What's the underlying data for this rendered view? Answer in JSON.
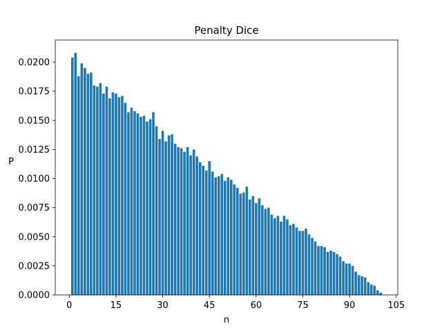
{
  "chart_data": {
    "type": "bar",
    "title": "Penalty Dice",
    "xlabel": "n",
    "ylabel": "P",
    "xlim": [
      -4.5,
      105.5
    ],
    "ylim": [
      0,
      0.0219
    ],
    "xticks": [
      0,
      15,
      30,
      45,
      60,
      75,
      90,
      105
    ],
    "yticks": [
      0.0,
      0.0025,
      0.005,
      0.0075,
      0.01,
      0.0125,
      0.015,
      0.0175,
      0.02
    ],
    "ytick_labels": [
      "0.0000",
      "0.0025",
      "0.0050",
      "0.0075",
      "0.0100",
      "0.0125",
      "0.0150",
      "0.0175",
      "0.0200"
    ],
    "grid": false,
    "bar_color": "#1f77b4",
    "x": [
      1,
      2,
      3,
      4,
      5,
      6,
      7,
      8,
      9,
      10,
      11,
      12,
      13,
      14,
      15,
      16,
      17,
      18,
      19,
      20,
      21,
      22,
      23,
      24,
      25,
      26,
      27,
      28,
      29,
      30,
      31,
      32,
      33,
      34,
      35,
      36,
      37,
      38,
      39,
      40,
      41,
      42,
      43,
      44,
      45,
      46,
      47,
      48,
      49,
      50,
      51,
      52,
      53,
      54,
      55,
      56,
      57,
      58,
      59,
      60,
      61,
      62,
      63,
      64,
      65,
      66,
      67,
      68,
      69,
      70,
      71,
      72,
      73,
      74,
      75,
      76,
      77,
      78,
      79,
      80,
      81,
      82,
      83,
      84,
      85,
      86,
      87,
      88,
      89,
      90,
      91,
      92,
      93,
      94,
      95,
      96,
      97,
      98,
      99,
      100
    ],
    "values": [
      0.0204,
      0.0208,
      0.0188,
      0.0199,
      0.0195,
      0.019,
      0.0191,
      0.018,
      0.0179,
      0.0182,
      0.0173,
      0.0179,
      0.0169,
      0.0174,
      0.0173,
      0.017,
      0.0171,
      0.0165,
      0.0157,
      0.0161,
      0.0158,
      0.0156,
      0.0153,
      0.0154,
      0.0149,
      0.0151,
      0.0157,
      0.0145,
      0.0134,
      0.0141,
      0.0132,
      0.0137,
      0.0138,
      0.013,
      0.0127,
      0.0126,
      0.0123,
      0.0127,
      0.012,
      0.0125,
      0.0119,
      0.0114,
      0.0111,
      0.0107,
      0.0115,
      0.0106,
      0.0101,
      0.0102,
      0.0104,
      0.0098,
      0.0101,
      0.0099,
      0.0095,
      0.0092,
      0.0087,
      0.0088,
      0.0093,
      0.0082,
      0.0085,
      0.0079,
      0.0083,
      0.0077,
      0.0074,
      0.0075,
      0.0069,
      0.0066,
      0.0068,
      0.0063,
      0.0068,
      0.0065,
      0.006,
      0.0061,
      0.0058,
      0.0055,
      0.0055,
      0.0057,
      0.0052,
      0.0049,
      0.0046,
      0.0042,
      0.0042,
      0.0041,
      0.0037,
      0.0038,
      0.0037,
      0.0035,
      0.0033,
      0.0029,
      0.0027,
      0.0027,
      0.0025,
      0.002,
      0.0017,
      0.0016,
      0.0015,
      0.0011,
      0.0009,
      0.0008,
      0.0004,
      0.0002
    ]
  }
}
